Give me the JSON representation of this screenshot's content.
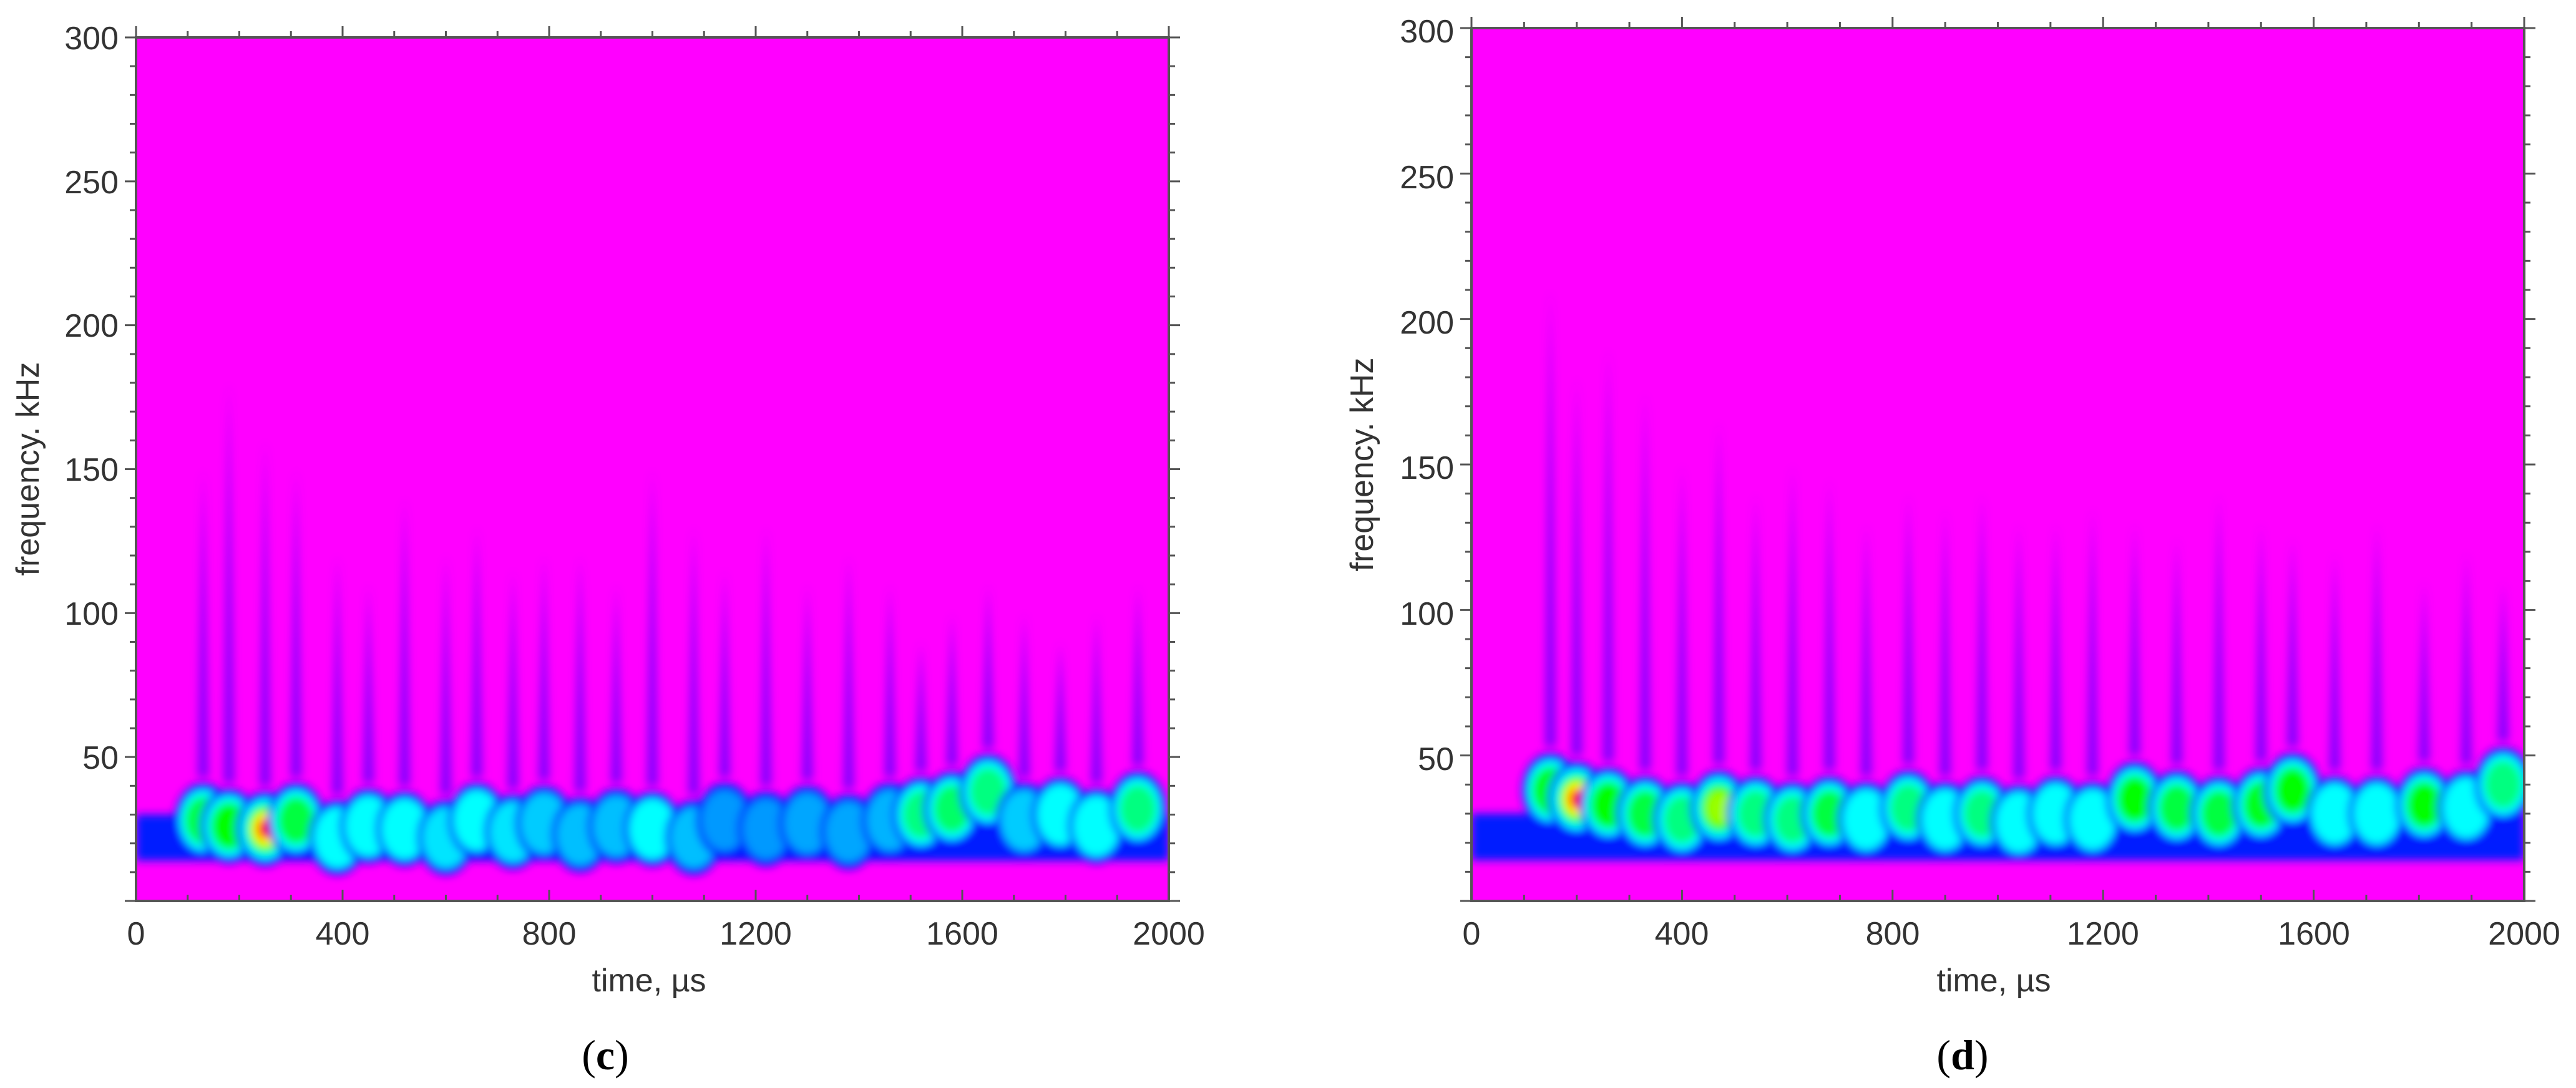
{
  "chart_data": [
    {
      "type": "heatmap",
      "panel_label": {
        "open": "(",
        "letter": "c",
        "close": ")"
      },
      "title": "",
      "xlabel": "time, µs",
      "ylabel": "frequency. kHz",
      "xlim": [
        0,
        2000
      ],
      "ylim": [
        0,
        300
      ],
      "x_ticks": [
        0,
        400,
        800,
        1200,
        1600,
        2000
      ],
      "y_ticks": [
        50,
        100,
        150,
        200,
        250,
        300
      ],
      "grid": false,
      "colormap": [
        "#ff00ff",
        "#0000ff",
        "#00ffff",
        "#00ff00",
        "#ffff00",
        "#ff0000"
      ],
      "background_color": "#ff00ff",
      "ridges": [
        {
          "t": 130,
          "f": 28,
          "peak": 0.55,
          "top": 150
        },
        {
          "t": 180,
          "f": 26,
          "peak": 0.62,
          "top": 180
        },
        {
          "t": 250,
          "f": 25,
          "peak": 1.0,
          "top": 160
        },
        {
          "t": 310,
          "f": 28,
          "peak": 0.55,
          "top": 150
        },
        {
          "t": 390,
          "f": 22,
          "peak": 0.45,
          "top": 120
        },
        {
          "t": 450,
          "f": 26,
          "peak": 0.45,
          "top": 110
        },
        {
          "t": 520,
          "f": 25,
          "peak": 0.42,
          "top": 140
        },
        {
          "t": 600,
          "f": 22,
          "peak": 0.38,
          "top": 120
        },
        {
          "t": 660,
          "f": 28,
          "peak": 0.42,
          "top": 130
        },
        {
          "t": 730,
          "f": 24,
          "peak": 0.38,
          "top": 115
        },
        {
          "t": 790,
          "f": 27,
          "peak": 0.36,
          "top": 120
        },
        {
          "t": 860,
          "f": 23,
          "peak": 0.35,
          "top": 120
        },
        {
          "t": 930,
          "f": 26,
          "peak": 0.35,
          "top": 110
        },
        {
          "t": 1000,
          "f": 25,
          "peak": 0.4,
          "top": 150
        },
        {
          "t": 1080,
          "f": 22,
          "peak": 0.35,
          "top": 130
        },
        {
          "t": 1140,
          "f": 28,
          "peak": 0.32,
          "top": 115
        },
        {
          "t": 1220,
          "f": 25,
          "peak": 0.32,
          "top": 130
        },
        {
          "t": 1300,
          "f": 27,
          "peak": 0.33,
          "top": 110
        },
        {
          "t": 1380,
          "f": 24,
          "peak": 0.33,
          "top": 120
        },
        {
          "t": 1460,
          "f": 28,
          "peak": 0.34,
          "top": 110
        },
        {
          "t": 1520,
          "f": 30,
          "peak": 0.5,
          "top": 90
        },
        {
          "t": 1580,
          "f": 32,
          "peak": 0.52,
          "top": 100
        },
        {
          "t": 1650,
          "f": 38,
          "peak": 0.5,
          "top": 110
        },
        {
          "t": 1720,
          "f": 28,
          "peak": 0.36,
          "top": 100
        },
        {
          "t": 1790,
          "f": 30,
          "peak": 0.4,
          "top": 90
        },
        {
          "t": 1860,
          "f": 26,
          "peak": 0.4,
          "top": 100
        },
        {
          "t": 1940,
          "f": 32,
          "peak": 0.5,
          "top": 110
        }
      ]
    },
    {
      "type": "heatmap",
      "panel_label": {
        "open": "(",
        "letter": "d",
        "close": ")"
      },
      "title": "",
      "xlabel": "time, µs",
      "ylabel": "frequency. kHz",
      "xlim": [
        0,
        2000
      ],
      "ylim": [
        0,
        300
      ],
      "x_ticks": [
        0,
        400,
        800,
        1200,
        1600,
        2000
      ],
      "y_ticks": [
        50,
        100,
        150,
        200,
        250,
        300
      ],
      "grid": false,
      "colormap": [
        "#ff00ff",
        "#0000ff",
        "#00ffff",
        "#00ff00",
        "#ffff00",
        "#ff0000"
      ],
      "background_color": "#ff00ff",
      "ridges": [
        {
          "t": 150,
          "f": 38,
          "peak": 0.62,
          "top": 210
        },
        {
          "t": 200,
          "f": 35,
          "peak": 1.0,
          "top": 180
        },
        {
          "t": 260,
          "f": 33,
          "peak": 0.6,
          "top": 190
        },
        {
          "t": 330,
          "f": 30,
          "peak": 0.55,
          "top": 175
        },
        {
          "t": 400,
          "f": 28,
          "peak": 0.5,
          "top": 150
        },
        {
          "t": 470,
          "f": 32,
          "peak": 0.72,
          "top": 165
        },
        {
          "t": 540,
          "f": 30,
          "peak": 0.5,
          "top": 140
        },
        {
          "t": 610,
          "f": 28,
          "peak": 0.5,
          "top": 150
        },
        {
          "t": 680,
          "f": 30,
          "peak": 0.55,
          "top": 145
        },
        {
          "t": 750,
          "f": 28,
          "peak": 0.45,
          "top": 130
        },
        {
          "t": 830,
          "f": 32,
          "peak": 0.5,
          "top": 140
        },
        {
          "t": 900,
          "f": 28,
          "peak": 0.45,
          "top": 135
        },
        {
          "t": 970,
          "f": 30,
          "peak": 0.5,
          "top": 140
        },
        {
          "t": 1040,
          "f": 27,
          "peak": 0.45,
          "top": 130
        },
        {
          "t": 1110,
          "f": 30,
          "peak": 0.45,
          "top": 130
        },
        {
          "t": 1180,
          "f": 28,
          "peak": 0.45,
          "top": 135
        },
        {
          "t": 1260,
          "f": 35,
          "peak": 0.62,
          "top": 130
        },
        {
          "t": 1340,
          "f": 32,
          "peak": 0.55,
          "top": 125
        },
        {
          "t": 1420,
          "f": 30,
          "peak": 0.55,
          "top": 140
        },
        {
          "t": 1500,
          "f": 33,
          "peak": 0.58,
          "top": 130
        },
        {
          "t": 1560,
          "f": 38,
          "peak": 0.62,
          "top": 125
        },
        {
          "t": 1640,
          "f": 30,
          "peak": 0.45,
          "top": 120
        },
        {
          "t": 1720,
          "f": 30,
          "peak": 0.42,
          "top": 130
        },
        {
          "t": 1810,
          "f": 33,
          "peak": 0.65,
          "top": 110
        },
        {
          "t": 1890,
          "f": 32,
          "peak": 0.45,
          "top": 120
        },
        {
          "t": 1960,
          "f": 40,
          "peak": 0.5,
          "top": 110
        }
      ]
    }
  ]
}
